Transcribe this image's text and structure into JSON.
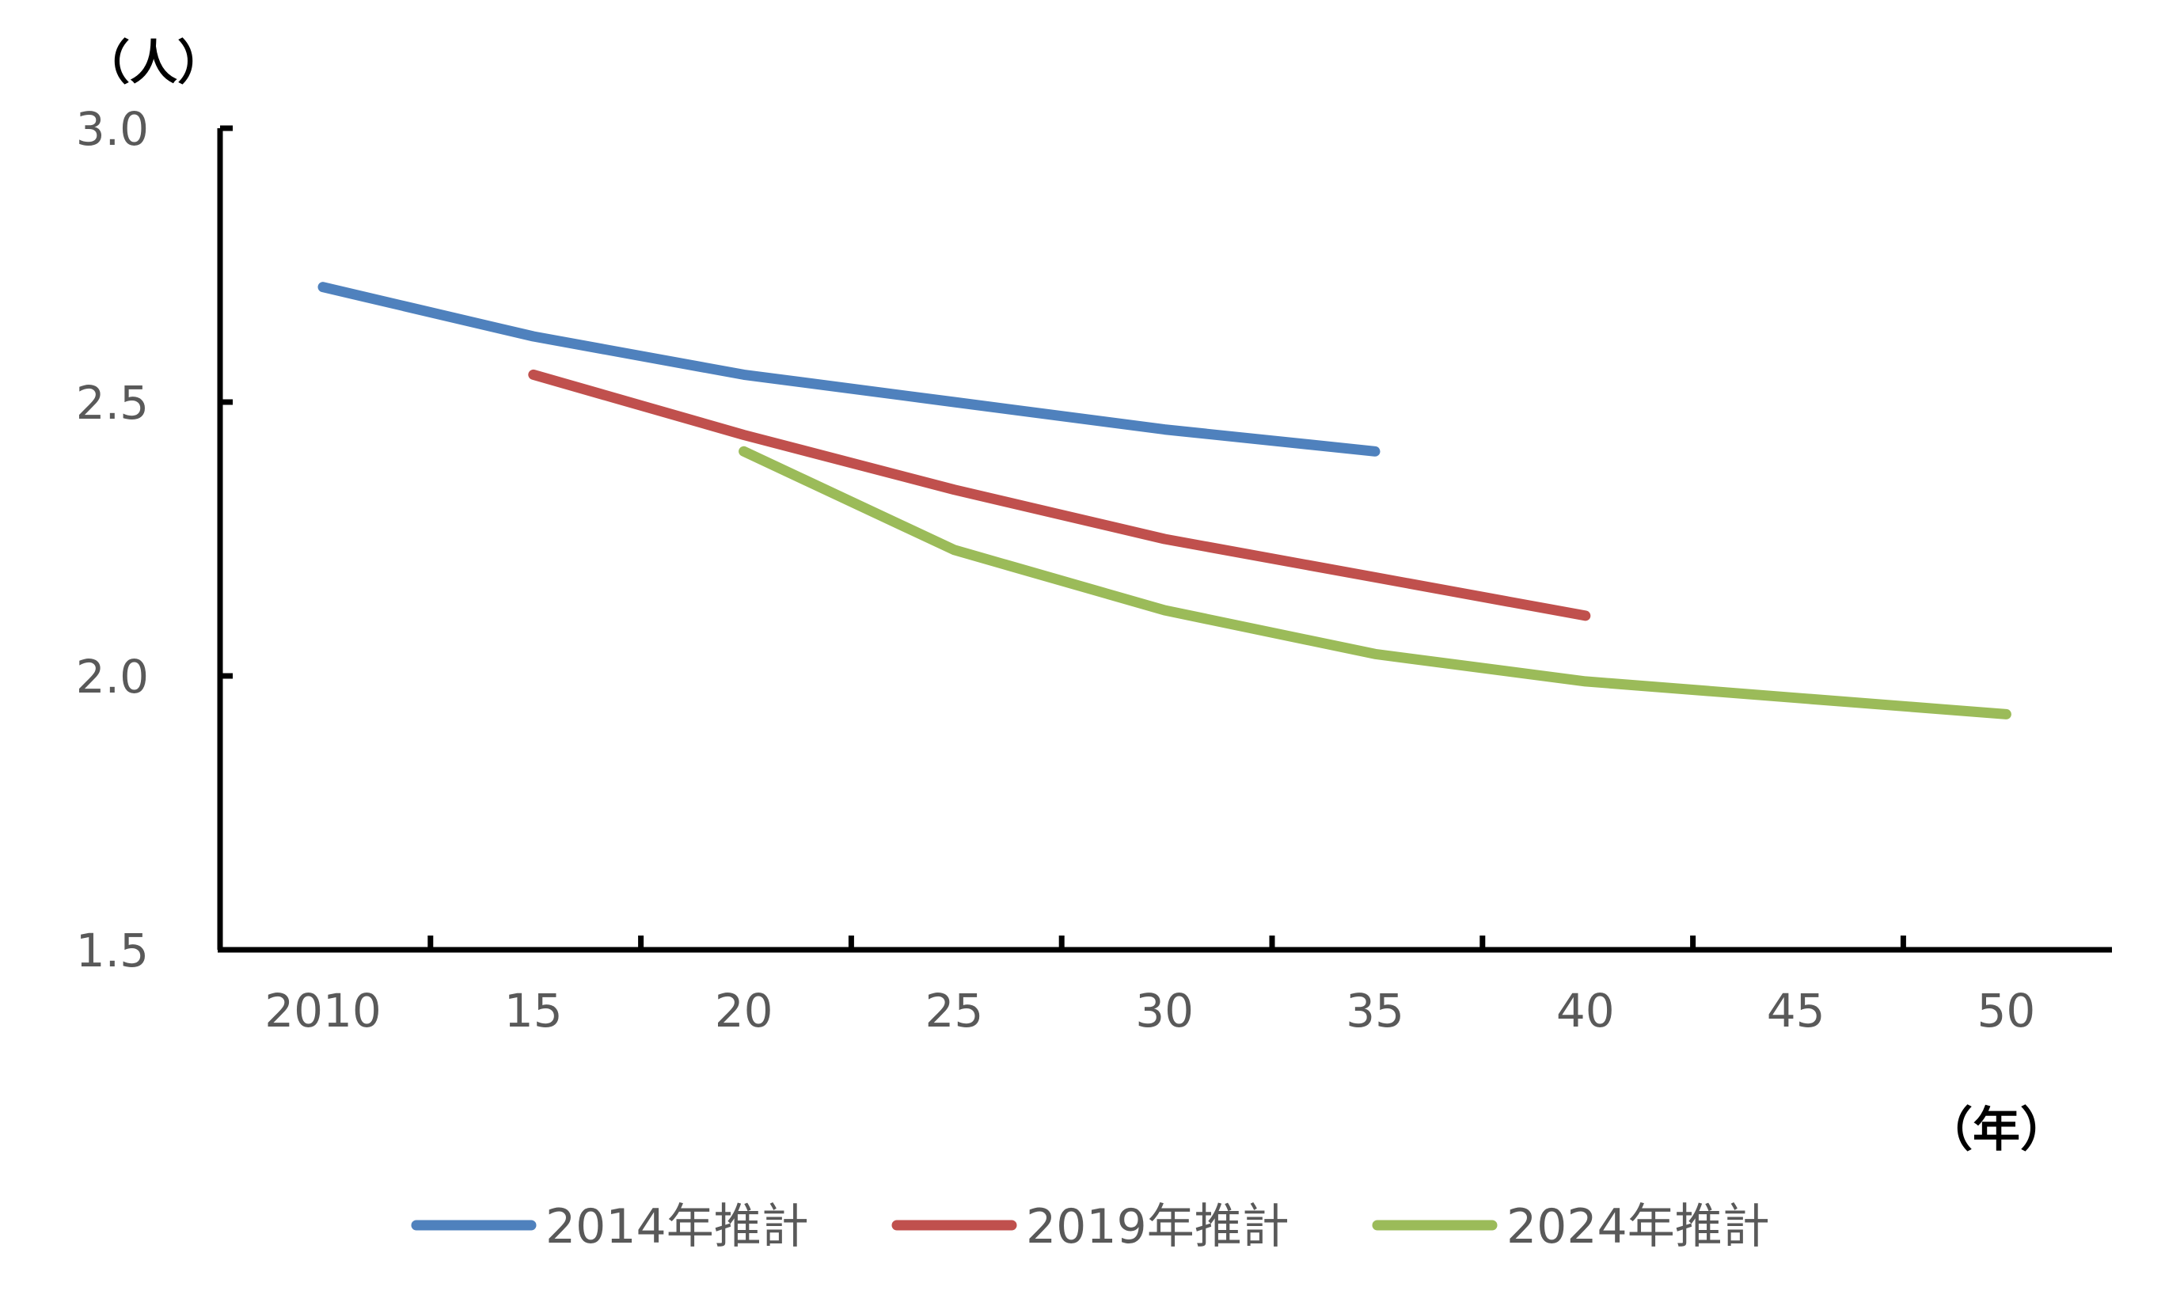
{
  "chart_data": {
    "type": "line",
    "y_unit_label": "（人）",
    "x_unit_label": "（年）",
    "ylim": [
      1.5,
      3.0
    ],
    "yticks": [
      "1.5",
      "2.0",
      "2.5",
      "3.0"
    ],
    "yticks_values": [
      1.5,
      2.0,
      2.5,
      3.0
    ],
    "x_values": [
      2010,
      2015,
      2020,
      2025,
      2030,
      2035,
      2040,
      2045,
      2050
    ],
    "x_tick_labels": [
      "2010",
      "15",
      "20",
      "25",
      "30",
      "35",
      "40",
      "45",
      "50"
    ],
    "grid": false,
    "legend_position": "bottom",
    "series": [
      {
        "name": "2014年推計",
        "color": "#4F81BD",
        "x": [
          2010,
          2015,
          2020,
          2025,
          2030,
          2035
        ],
        "values": [
          2.71,
          2.62,
          2.55,
          2.5,
          2.45,
          2.41
        ]
      },
      {
        "name": "2019年推計",
        "color": "#C0504D",
        "x": [
          2015,
          2020,
          2025,
          2030,
          2035,
          2040
        ],
        "values": [
          2.55,
          2.44,
          2.34,
          2.25,
          2.18,
          2.11
        ]
      },
      {
        "name": "2024年推計",
        "color": "#9BBB59",
        "x": [
          2020,
          2025,
          2030,
          2035,
          2040,
          2045,
          2050
        ],
        "values": [
          2.41,
          2.23,
          2.12,
          2.04,
          1.99,
          1.96,
          1.93
        ]
      }
    ]
  }
}
